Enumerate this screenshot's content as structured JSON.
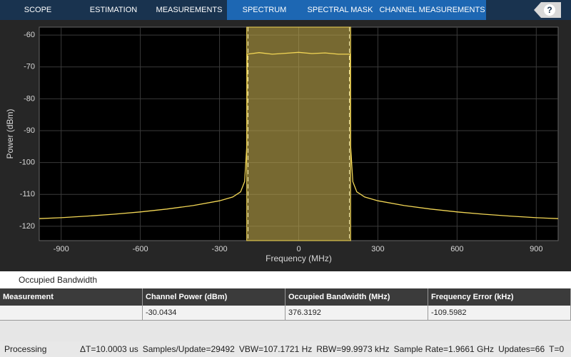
{
  "toolbar": {
    "tabs": [
      {
        "label": "SCOPE",
        "highlighted": false
      },
      {
        "label": "ESTIMATION",
        "highlighted": false
      },
      {
        "label": "MEASUREMENTS",
        "highlighted": false
      },
      {
        "label": "SPECTRUM",
        "highlighted": true
      },
      {
        "label": "SPECTRAL MASK",
        "highlighted": true
      },
      {
        "label": "CHANNEL MEASUREMENTS",
        "highlighted": true
      }
    ],
    "help": "?"
  },
  "chart_data": {
    "type": "line",
    "xlabel": "Frequency (MHz)",
    "ylabel": "Power (dBm)",
    "x": [
      -983,
      -900,
      -800,
      -700,
      -600,
      -500,
      -400,
      -300,
      -250,
      -220,
      -205,
      -197,
      -195,
      -150,
      -100,
      -50,
      0,
      50,
      100,
      150,
      195,
      197,
      205,
      220,
      250,
      300,
      400,
      500,
      600,
      700,
      800,
      900,
      983
    ],
    "values": [
      -117.6,
      -117.3,
      -116.8,
      -116.2,
      -115.5,
      -114.6,
      -113.5,
      -112.0,
      -110.8,
      -109.2,
      -106.0,
      -95.0,
      -66.0,
      -65.5,
      -66.0,
      -65.7,
      -65.4,
      -65.8,
      -65.6,
      -66.0,
      -66.0,
      -95.0,
      -106.0,
      -109.2,
      -110.8,
      -112.0,
      -113.5,
      -114.6,
      -115.5,
      -116.2,
      -116.8,
      -117.3,
      -117.6
    ],
    "color": "#f2d655",
    "band": [
      -197,
      197
    ],
    "band_markers": [
      -192,
      192
    ],
    "xlim": [
      -983,
      983
    ],
    "xticks": [
      -900,
      -600,
      -300,
      0,
      300,
      600,
      900
    ],
    "ylim": [
      -124.5,
      -57.5
    ],
    "yticks": [
      -60,
      -70,
      -80,
      -90,
      -100,
      -110,
      -120
    ],
    "grid": true
  },
  "table": {
    "title": "Occupied Bandwidth",
    "header": [
      "Measurement",
      "Channel Power (dBm)",
      "Occupied Bandwidth (MHz)",
      "Frequency Error (kHz)"
    ],
    "rows": [
      [
        null,
        "-30.0434",
        "376.3192",
        "-109.5982"
      ]
    ]
  },
  "status": {
    "state": "Processing",
    "items": [
      "ΔT=10.0003 us",
      "Samples/Update=29492",
      "VBW=107.1721 Hz",
      "RBW=99.9973 kHz",
      "Sample Rate=1.9661 GHz",
      "Updates=66",
      "T=0"
    ]
  }
}
